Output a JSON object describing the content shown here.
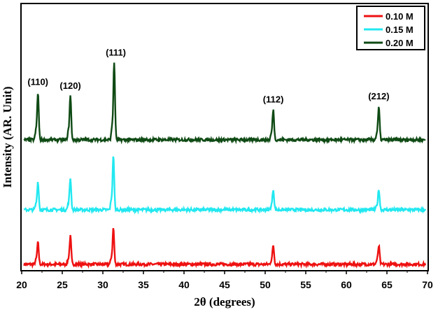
{
  "chart_data": {
    "type": "line",
    "title": "",
    "xlabel": "2θ (degrees)",
    "ylabel": "Intensity (AR. Unit)",
    "xlim": [
      20,
      70
    ],
    "ylim": [
      0,
      100
    ],
    "xticks": [
      "20",
      "25",
      "30",
      "35",
      "40",
      "45",
      "50",
      "55",
      "60",
      "65",
      "70"
    ],
    "grid": false,
    "legend_placement": "top-right",
    "series": [
      {
        "name": "0.10 M",
        "color": "#ee1111",
        "baseline": 2.4,
        "peaks": [
          {
            "x": 22.0,
            "y": 10.5
          },
          {
            "x": 26.0,
            "y": 12.8
          },
          {
            "x": 31.3,
            "y": 16.0
          },
          {
            "x": 51.0,
            "y": 9.4
          },
          {
            "x": 64.0,
            "y": 9.2
          }
        ]
      },
      {
        "name": "0.15 M",
        "color": "#22e8f0",
        "baseline": 22.8,
        "peaks": [
          {
            "x": 22.0,
            "y": 33.2
          },
          {
            "x": 26.0,
            "y": 34.6
          },
          {
            "x": 31.3,
            "y": 43.2
          },
          {
            "x": 51.0,
            "y": 30.4
          },
          {
            "x": 64.0,
            "y": 30.4
          }
        ]
      },
      {
        "name": "0.20 M",
        "color": "#0f4a14",
        "baseline": 49.0,
        "peaks": [
          {
            "x": 22.0,
            "y": 66.5
          },
          {
            "x": 26.0,
            "y": 65.4
          },
          {
            "x": 31.4,
            "y": 77.7
          },
          {
            "x": 51.0,
            "y": 60.2
          },
          {
            "x": 64.0,
            "y": 61.0
          }
        ]
      }
    ],
    "annotations": [
      {
        "text": "(110)",
        "x": 22.0,
        "y": 69.5
      },
      {
        "text": "(120)",
        "x": 26.0,
        "y": 68.0
      },
      {
        "text": "(111)",
        "x": 31.6,
        "y": 80.5
      },
      {
        "text": "(112)",
        "x": 51.0,
        "y": 63.0
      },
      {
        "text": "(212)",
        "x": 64.0,
        "y": 64.2
      }
    ]
  }
}
